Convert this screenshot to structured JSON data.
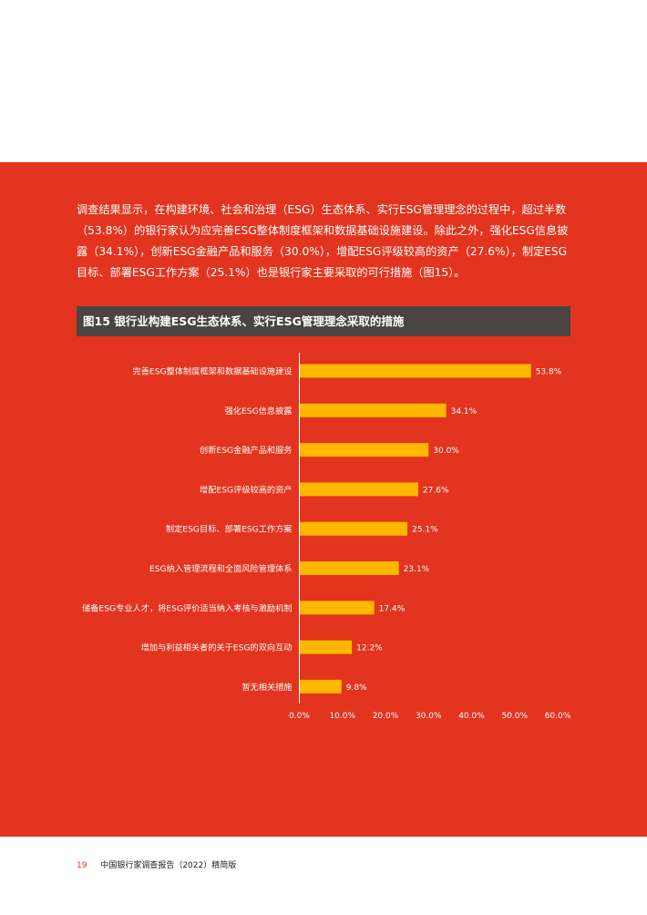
{
  "intro_text": "调查结果显示，在构建环境、社会和治理（ESG）生态体系、实行ESG管理理念的过程中，超过半数（53.8%）的银行家认为应完善ESG整体制度框架和数据基础设施建设。除此之外，强化ESG信息披露（34.1%），创新ESG金融产品和服务（30.0%），增配ESG评级较高的资产（27.6%），制定ESG目标、部署ESG工作方案（25.1%）也是银行家主要采取的可行措施（图15）。",
  "figure_title": "图15  银行业构建ESG生态体系、实行ESG管理理念采取的措施",
  "chart_data": {
    "type": "bar",
    "orientation": "horizontal",
    "categories": [
      "完善ESG整体制度框架和数据基础设施建设",
      "强化ESG信息披露",
      "创新ESG金融产品和服务",
      "增配ESG评级较高的资产",
      "制定ESG目标、部署ESG工作方案",
      "ESG纳入管理流程和全面风险管理体系",
      "储备ESG专业人才，将ESG评价适当纳入考核与激励机制",
      "增加与利益相关者的关于ESG的双向互动",
      "暂无相关措施"
    ],
    "values": [
      53.8,
      34.1,
      30.0,
      27.6,
      25.1,
      23.1,
      17.4,
      12.2,
      9.8
    ],
    "value_labels": [
      "53.8%",
      "34.1%",
      "30.0%",
      "27.6%",
      "25.1%",
      "23.1%",
      "17.4%",
      "12.2%",
      "9.8%"
    ],
    "xlim": [
      0,
      60
    ],
    "x_ticks": [
      "0.0%",
      "10.0%",
      "20.0%",
      "30.0%",
      "40.0%",
      "50.0%",
      "60.0%"
    ],
    "grid": false,
    "bar_color": "#ffb800"
  },
  "footer": {
    "page_number": "19",
    "report_title": "中国银行家调查报告（2022）精简版"
  },
  "colors": {
    "panel_red": "#e2341e",
    "header_gray": "#4a4443",
    "bar_yellow": "#ffb800"
  }
}
